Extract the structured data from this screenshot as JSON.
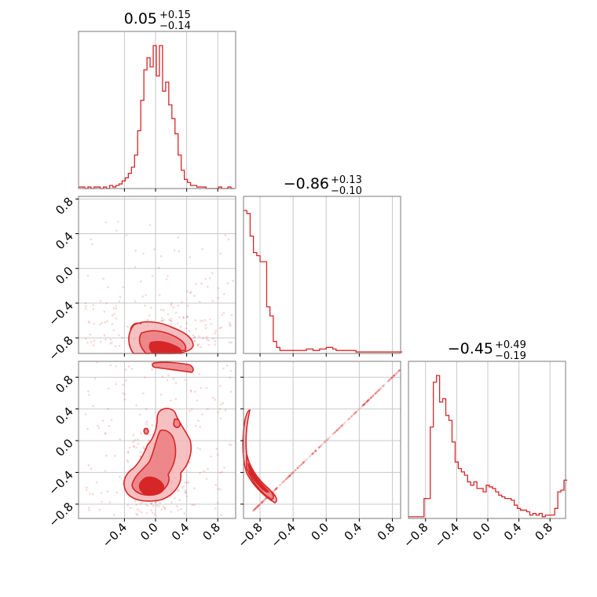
{
  "figure": {
    "colors": {
      "series": "#d62728",
      "frame": "#7a7a7a",
      "grid": "#c8c8c8"
    }
  },
  "chart_data": [
    {
      "type": "histogram",
      "panel": "marginal-param-1",
      "title": {
        "median": "0.05",
        "plus": "+0.15",
        "minus": "−0.14"
      },
      "xlim": [
        -0.99,
        1.03
      ],
      "x_ticks": [
        "−0.4",
        "0.0",
        "0.4",
        "0.8"
      ],
      "x_tick_values": [
        -0.4,
        0.0,
        0.4,
        0.8
      ],
      "bin_edges_start": -0.99,
      "bin_width": 0.04,
      "counts": [
        1,
        1,
        0,
        1,
        0,
        1,
        1,
        0,
        1,
        0,
        2,
        1,
        2,
        3,
        5,
        7,
        10,
        14,
        22,
        38,
        58,
        78,
        86,
        80,
        94,
        74,
        94,
        64,
        70,
        55,
        46,
        36,
        22,
        12,
        6,
        4,
        2,
        2,
        1,
        1,
        1,
        0,
        0,
        0,
        0,
        1,
        0,
        0,
        1,
        0
      ],
      "grid": true
    },
    {
      "type": "histogram",
      "panel": "marginal-param-2",
      "title": {
        "median": "−0.86",
        "plus": "+0.13",
        "minus": "−0.10"
      },
      "xlim": [
        -1.0,
        0.9
      ],
      "x_ticks": [
        "−0.8",
        "−0.4",
        "0.0",
        "0.4",
        "0.8"
      ],
      "x_tick_values": [
        -0.8,
        -0.4,
        0.0,
        0.4,
        0.8
      ],
      "bin_edges_start": -1.0,
      "bin_width": 0.04,
      "counts": [
        95,
        93,
        78,
        67,
        65,
        61,
        61,
        31,
        25,
        8,
        4,
        2,
        2,
        2,
        2,
        2,
        2,
        2,
        2,
        3,
        3,
        2,
        2,
        3,
        3,
        4,
        4,
        3,
        2,
        2,
        2,
        2,
        2,
        2,
        1,
        1,
        1,
        1,
        1,
        1,
        1,
        1,
        1,
        1,
        1,
        1,
        1,
        1
      ],
      "grid": true
    },
    {
      "type": "histogram",
      "panel": "marginal-param-3",
      "title": {
        "median": "−0.45",
        "plus": "+0.49",
        "minus": "−0.19"
      },
      "xlim": [
        -1.02,
        1.0
      ],
      "x_ticks": [
        "−0.8",
        "−0.4",
        "0.0",
        "0.4",
        "0.8"
      ],
      "x_tick_values": [
        -0.8,
        -0.4,
        0.0,
        0.4,
        0.8
      ],
      "bin_edges_start": -1.02,
      "bin_width": 0.04,
      "counts": [
        1,
        1,
        1,
        1,
        1,
        12,
        12,
        55,
        82,
        86,
        70,
        72,
        62,
        59,
        46,
        34,
        30,
        28,
        26,
        22,
        20,
        22,
        18,
        18,
        16,
        20,
        19,
        18,
        16,
        14,
        13,
        12,
        12,
        11,
        8,
        6,
        5,
        5,
        4,
        2,
        3,
        2,
        3,
        1,
        2,
        2,
        2,
        6,
        16,
        17,
        23
      ],
      "grid": true
    },
    {
      "type": "scatter_density",
      "panel": "joint-1-2",
      "xlim": [
        -0.99,
        1.03
      ],
      "ylim": [
        -0.98,
        0.83
      ],
      "y_ticks": [
        "−0.8",
        "−0.4",
        "0.0",
        "0.4",
        "0.8"
      ],
      "y_tick_values": [
        -0.8,
        -0.4,
        0.0,
        0.4,
        0.8
      ],
      "core": {
        "x": [
          -0.3,
          0.45
        ],
        "y": [
          -0.98,
          -0.6
        ]
      },
      "grid": true
    },
    {
      "type": "scatter_density",
      "panel": "joint-1-3",
      "xlim": [
        -0.99,
        1.03
      ],
      "ylim": [
        -0.98,
        1.0
      ],
      "x_ticks": [
        "−0.4",
        "0.0",
        "0.4",
        "0.8"
      ],
      "x_tick_values": [
        -0.4,
        0.0,
        0.4,
        0.8
      ],
      "y_ticks": [
        "−0.8",
        "−0.4",
        "0.0",
        "0.4",
        "0.8"
      ],
      "y_tick_values": [
        -0.8,
        -0.4,
        0.0,
        0.4,
        0.8
      ],
      "core": {
        "x": [
          -0.4,
          0.45
        ],
        "y": [
          -0.8,
          0.4
        ]
      },
      "grid": true
    },
    {
      "type": "scatter_density",
      "panel": "joint-2-3",
      "xlim": [
        -1.0,
        0.9
      ],
      "ylim": [
        -0.98,
        1.0
      ],
      "x_ticks": [
        "−0.8",
        "−0.4",
        "0.0",
        "0.4",
        "0.8"
      ],
      "x_tick_values": [
        -0.8,
        -0.4,
        0.0,
        0.4,
        0.8
      ],
      "core": {
        "x": [
          -1.0,
          -0.58
        ],
        "y": [
          -0.78,
          0.4
        ]
      },
      "grid": true
    }
  ]
}
